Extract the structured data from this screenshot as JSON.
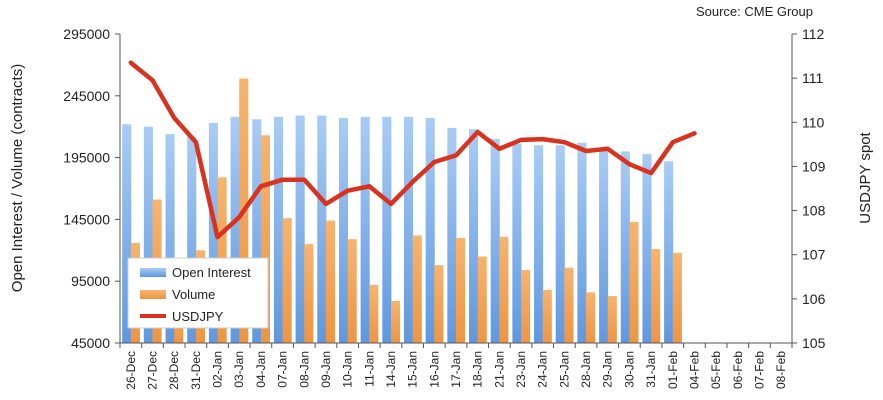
{
  "source": "Source: CME Group",
  "chart_data": {
    "type": "bar",
    "categories": [
      "26-Dec",
      "27-Dec",
      "28-Dec",
      "31-Dec",
      "02-Jan",
      "03-Jan",
      "04-Jan",
      "07-Jan",
      "08-Jan",
      "09-Jan",
      "10-Jan",
      "11-Jan",
      "14-Jan",
      "15-Jan",
      "16-Jan",
      "17-Jan",
      "18-Jan",
      "21-Jan",
      "23-Jan",
      "24-Jan",
      "25-Jan",
      "28-Jan",
      "29-Jan",
      "30-Jan",
      "31-Jan",
      "01-Feb",
      "04-Feb",
      "05-Feb",
      "06-Feb",
      "07-Feb",
      "08-Feb"
    ],
    "series": [
      {
        "name": "Open Interest",
        "kind": "bar",
        "axis": "left",
        "color": "#7FB0EA",
        "values": [
          222000,
          220000,
          214000,
          212000,
          223000,
          228000,
          226000,
          228000,
          229000,
          229000,
          227000,
          228000,
          228000,
          228000,
          227000,
          219000,
          218000,
          210000,
          206000,
          205000,
          205000,
          207000,
          202000,
          200000,
          198000,
          192000,
          null,
          null,
          null,
          null,
          null
        ]
      },
      {
        "name": "Volume",
        "kind": "bar",
        "axis": "left",
        "color": "#F2A158",
        "values": [
          126000,
          161000,
          84000,
          120000,
          179000,
          259000,
          213000,
          146000,
          125000,
          144000,
          129000,
          92000,
          79000,
          132000,
          108000,
          130000,
          115000,
          131000,
          104000,
          88000,
          106000,
          86000,
          83000,
          143000,
          121000,
          118000,
          null,
          null,
          null,
          null,
          null
        ]
      },
      {
        "name": "USDJPY",
        "kind": "line",
        "axis": "right",
        "color": "#D9321F",
        "values": [
          111.35,
          110.95,
          110.1,
          109.55,
          107.4,
          107.85,
          108.55,
          108.7,
          108.7,
          108.15,
          108.45,
          108.55,
          108.15,
          108.65,
          109.1,
          109.25,
          109.78,
          109.4,
          109.6,
          109.62,
          109.55,
          109.35,
          109.4,
          109.05,
          108.85,
          109.55,
          109.75,
          null,
          null,
          null,
          null
        ]
      }
    ],
    "ylabel": "Open Interest / Volume (contracts)",
    "y2label": "USDJPY spot",
    "ylim": [
      45000,
      295000
    ],
    "y2lim": [
      105,
      112
    ],
    "yticks": [
      "295000",
      "245000",
      "195000",
      "145000",
      "95000",
      "45000"
    ],
    "y2ticks": [
      "112",
      "111",
      "110",
      "109",
      "108",
      "107",
      "106",
      "105"
    ],
    "legend": [
      "Open Interest",
      "Volume",
      "USDJPY"
    ],
    "legend_position": "bottom-left",
    "grid": false
  }
}
